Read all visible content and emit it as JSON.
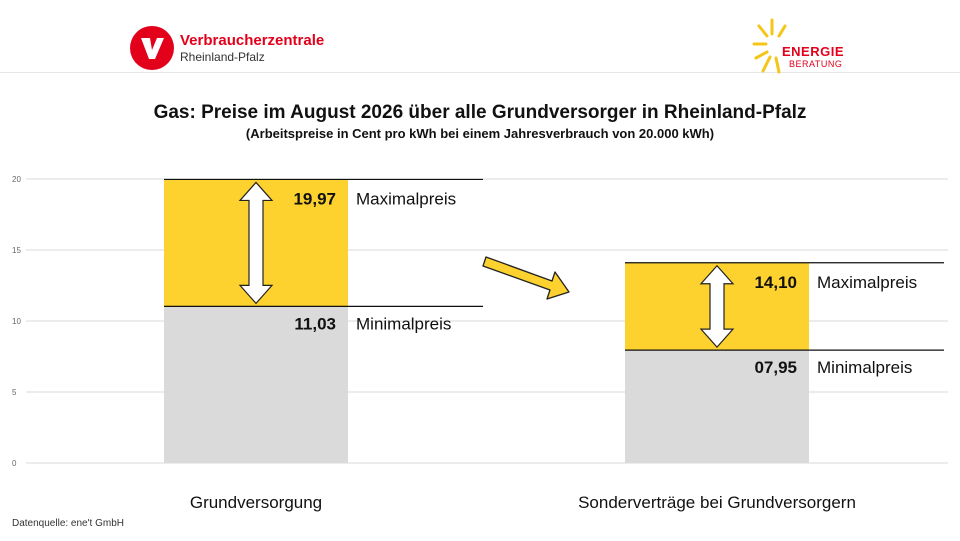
{
  "branding": {
    "vz_name": "Verbraucherzentrale",
    "vz_region": "Rheinland-Pfalz",
    "eb_line1": "ENERGIE",
    "eb_line2": "BERATUNG",
    "vz_color": "#e3001b",
    "sun_color": "#f5c518"
  },
  "source": "Datenquelle: ene't GmbH",
  "chart_data": {
    "type": "bar",
    "title": "Gas: Preise im August 2026 über alle Grundversorger in Rheinland-Pfalz",
    "subtitle": "(Arbeitspreise in Cent pro kWh bei einem Jahresverbrauch von 20.000 kWh)",
    "categories": [
      "Grundversorgung",
      "Sonderverträge bei Grundversorgern"
    ],
    "series": [
      {
        "name": "Minimalpreis",
        "values": [
          11.03,
          7.95
        ],
        "labels": [
          "11,03",
          "07,95"
        ],
        "color": "#d9dad9"
      },
      {
        "name": "Maximalpreis",
        "values": [
          19.97,
          14.1
        ],
        "labels": [
          "19,97",
          "14,10"
        ],
        "color": "#fdd12e"
      }
    ],
    "yticks": [
      0,
      5,
      10,
      15,
      20
    ],
    "ylim": [
      0,
      20
    ],
    "grid": true
  }
}
